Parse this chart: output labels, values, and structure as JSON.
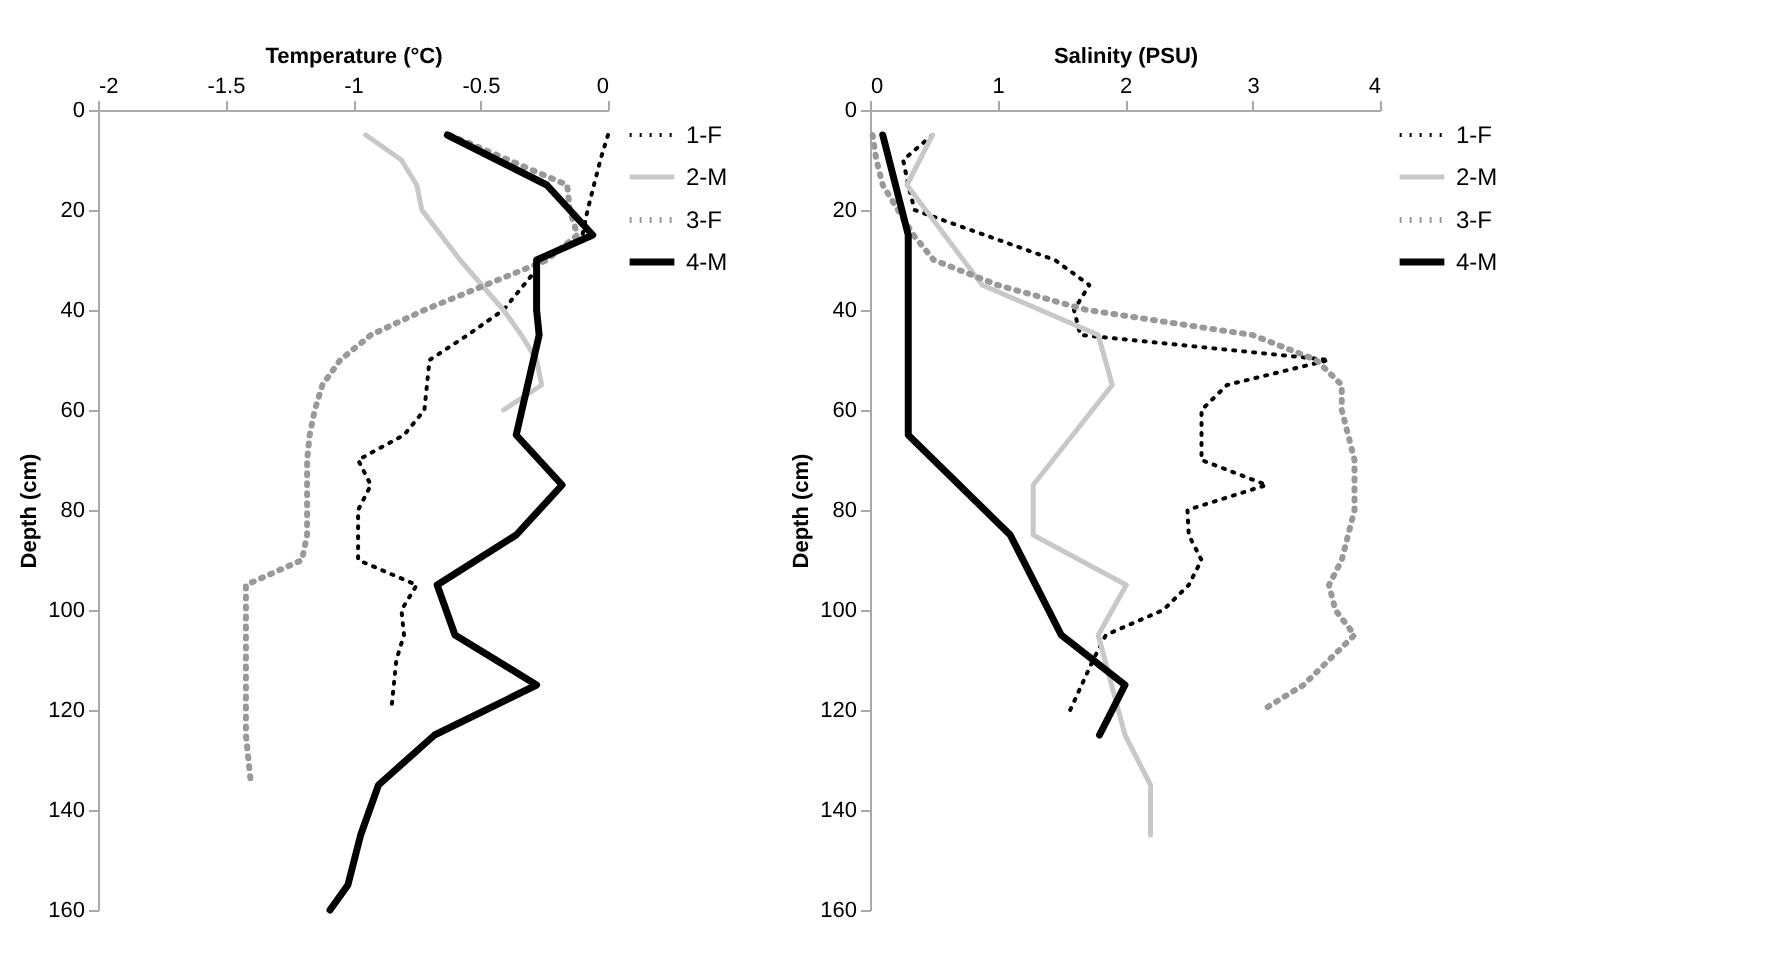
{
  "chart_data": [
    {
      "type": "line",
      "xlabel": "Temperature (°C)",
      "ylabel": "Depth (cm)",
      "xlim": [
        -2,
        0
      ],
      "xticks": [
        -2,
        -1.5,
        -1,
        -0.5,
        0
      ],
      "ylim": [
        160,
        0
      ],
      "yticks": [
        0,
        20,
        40,
        60,
        80,
        100,
        120,
        140,
        160
      ],
      "grid": false,
      "legend": "right",
      "marker": "none",
      "series": [
        {
          "name": "1-F",
          "color": "#000000",
          "line_style": "dotted",
          "x": [
            0,
            -0.03,
            -0.08,
            -0.1,
            -0.25,
            -0.41,
            -0.55,
            -0.7,
            -0.72,
            -0.8,
            -0.98,
            -0.93,
            -0.98,
            -0.98,
            -0.98,
            -0.75,
            -0.81,
            -0.8,
            -0.83,
            -0.85
          ],
          "values": [
            5,
            10,
            20,
            25,
            30,
            40,
            45,
            50,
            60,
            65,
            70,
            75,
            80,
            85,
            90,
            95,
            100,
            105,
            110,
            120
          ]
        },
        {
          "name": "2-M",
          "color": "#c8c8c8",
          "line_style": "solid",
          "x": [
            -0.95,
            -0.81,
            -0.75,
            -0.73,
            -0.58,
            -0.41,
            -0.34,
            -0.28,
            -0.26,
            -0.41
          ],
          "values": [
            5,
            10,
            15,
            20,
            30,
            40,
            45,
            50,
            55,
            60
          ]
        },
        {
          "name": "3-F",
          "color": "#999999",
          "line_style": "dotted",
          "x": [
            -0.62,
            -0.16,
            -0.15,
            -0.12,
            -0.24,
            -0.48,
            -0.72,
            -0.93,
            -1.05,
            -1.12,
            -1.15,
            -1.17,
            -1.18,
            -1.18,
            -1.18,
            -1.18,
            -1.2,
            -1.42,
            -1.42,
            -1.42,
            -1.42,
            -1.42,
            -1.42,
            -1.42,
            -1.4
          ],
          "values": [
            5,
            15,
            20,
            25,
            30,
            35,
            40,
            45,
            50,
            55,
            60,
            65,
            70,
            75,
            80,
            85,
            90,
            95,
            100,
            105,
            110,
            115,
            120,
            125,
            135
          ]
        },
        {
          "name": "4-M",
          "color": "#000000",
          "line_style": "solid",
          "x": [
            -0.63,
            -0.24,
            -0.06,
            -0.28,
            -0.28,
            -0.27,
            -0.36,
            -0.18,
            -0.36,
            -0.67,
            -0.6,
            -0.28,
            -0.68,
            -0.9,
            -0.97,
            -1.02,
            -1.09
          ],
          "values": [
            5,
            15,
            25,
            30,
            40,
            45,
            65,
            75,
            85,
            95,
            105,
            115,
            125,
            135,
            145,
            155,
            160
          ]
        }
      ]
    },
    {
      "type": "line",
      "xlabel": "Salinity (PSU)",
      "ylabel": "Depth (cm)",
      "xlim": [
        0,
        4
      ],
      "xticks": [
        0,
        1,
        2,
        3,
        4
      ],
      "ylim": [
        160,
        0
      ],
      "yticks": [
        0,
        20,
        40,
        60,
        80,
        100,
        120,
        140,
        160
      ],
      "grid": false,
      "legend": "right",
      "marker": "none",
      "series": [
        {
          "name": "1-F",
          "color": "#000000",
          "line_style": "dotted",
          "x": [
            0.49,
            0.26,
            0.3,
            0.35,
            0.9,
            1.45,
            1.72,
            1.6,
            1.65,
            3.6,
            2.8,
            2.6,
            2.6,
            2.6,
            3.11,
            2.49,
            2.5,
            2.6,
            2.5,
            2.3,
            1.85,
            1.75,
            1.57
          ],
          "values": [
            5,
            10,
            15,
            20,
            25,
            30,
            35,
            40,
            45,
            50,
            55,
            60,
            65,
            70,
            75,
            80,
            85,
            90,
            95,
            100,
            105,
            110,
            120
          ]
        },
        {
          "name": "2-M",
          "color": "#c8c8c8",
          "line_style": "solid",
          "x": [
            0.49,
            0.29,
            0.88,
            1.79,
            1.9,
            1.28,
            1.28,
            2.01,
            1.79,
            2.0,
            2.2,
            2.2
          ],
          "values": [
            5,
            15,
            35,
            45,
            55,
            75,
            85,
            95,
            105,
            125,
            135,
            145
          ]
        },
        {
          "name": "3-F",
          "color": "#999999",
          "line_style": "dotted",
          "x": [
            0.02,
            0.05,
            0.1,
            0.22,
            0.34,
            0.5,
            1.0,
            1.7,
            3.0,
            3.5,
            3.7,
            3.7,
            3.75,
            3.8,
            3.8,
            3.8,
            3.75,
            3.7,
            3.6,
            3.65,
            3.8,
            3.6,
            3.4,
            3.08
          ],
          "values": [
            5,
            10,
            15,
            20,
            25,
            30,
            35,
            40,
            45,
            50,
            55,
            60,
            65,
            70,
            75,
            80,
            85,
            90,
            95,
            100,
            105,
            110,
            115,
            120
          ]
        },
        {
          "name": "4-M",
          "color": "#000000",
          "line_style": "solid",
          "x": [
            0.1,
            0.3,
            0.3,
            1.1,
            1.5,
            2.0,
            1.8
          ],
          "values": [
            5,
            25,
            65,
            85,
            105,
            115,
            125
          ]
        }
      ]
    }
  ]
}
